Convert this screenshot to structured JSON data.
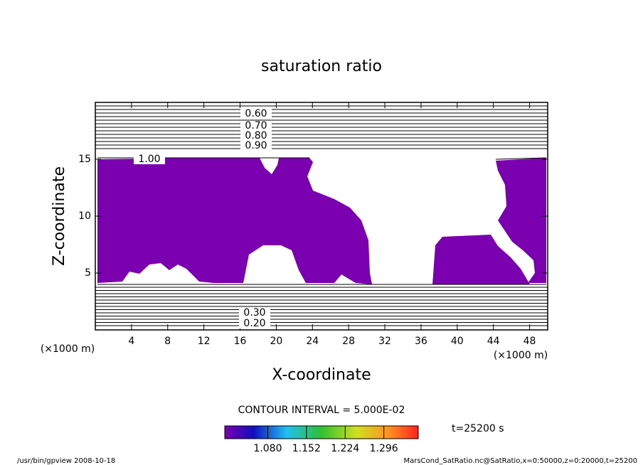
{
  "chart_data": {
    "type": "contour",
    "title": "saturation ratio",
    "xlabel": "X-coordinate",
    "ylabel": "Z-coordinate",
    "x_unit": "(×1000 m)",
    "y_unit": "(×1000 m)",
    "xlim": [
      0,
      50
    ],
    "ylim": [
      0,
      20
    ],
    "xticks": [
      4,
      8,
      12,
      16,
      20,
      24,
      28,
      32,
      36,
      40,
      44,
      48
    ],
    "yticks": [
      5,
      10,
      15
    ],
    "fill_color": "#7a00b0",
    "contour_labels": [
      {
        "value": 0.6,
        "label": "0.60"
      },
      {
        "value": 0.7,
        "label": "0.70"
      },
      {
        "value": 0.8,
        "label": "0.80"
      },
      {
        "value": 0.9,
        "label": "0.90"
      },
      {
        "value": 1.0,
        "label": "1.00"
      },
      {
        "value": 0.3,
        "label": "0.30"
      },
      {
        "value": 0.2,
        "label": "0.20"
      }
    ],
    "contour_interval": "CONTOUR INTERVAL = 5.000E-02",
    "colorbar": {
      "lim": [
        1.0,
        1.36
      ],
      "ticks": [
        {
          "value": 1.08,
          "label": "1.080"
        },
        {
          "value": 1.152,
          "label": "1.152"
        },
        {
          "value": 1.224,
          "label": "1.224"
        },
        {
          "value": 1.296,
          "label": "1.296"
        }
      ]
    },
    "time": "t=25200 s",
    "footer_left": "/usr/bin/gpview   2008-10-18",
    "footer_right": "MarsCond_SatRatio.nc@SatRatio,x=0:50000,z=0:20000,t=25200"
  }
}
